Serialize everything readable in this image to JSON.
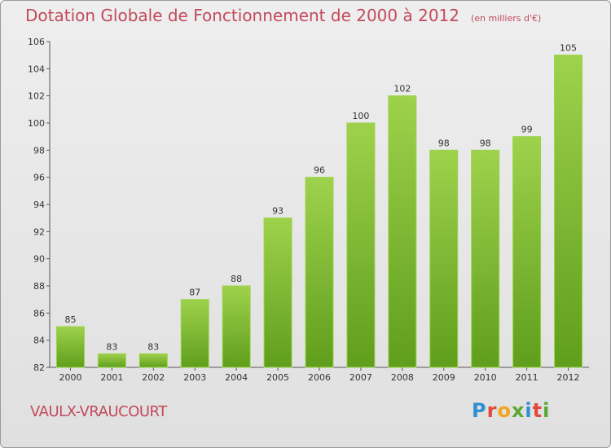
{
  "header": {
    "title": "Dotation Globale de Fonctionnement de 2000 à 2012",
    "unit_note": "(en milliers d'€)"
  },
  "commune": "VAULX-VRAUCOURT",
  "logo": {
    "text": "Proxiti",
    "letters": [
      "P",
      "r",
      "o",
      "x",
      "i",
      "t",
      "i"
    ],
    "colors": [
      "#2f8fd0",
      "#e14a3a",
      "#f2a51f",
      "#5aa832",
      "#2f8fd0",
      "#e14a3a",
      "#5aa832"
    ]
  },
  "chart_data": {
    "type": "bar",
    "title": "Dotation Globale de Fonctionnement de 2000 à 2012",
    "subtitle": "(en milliers d'€)",
    "categories": [
      "2000",
      "2001",
      "2002",
      "2003",
      "2004",
      "2005",
      "2006",
      "2007",
      "2008",
      "2009",
      "2010",
      "2011",
      "2012"
    ],
    "values": [
      85,
      83,
      83,
      87,
      88,
      93,
      96,
      100,
      102,
      98,
      98,
      99,
      105
    ],
    "ylim": [
      82,
      106
    ],
    "yticks": [
      82,
      84,
      86,
      88,
      90,
      92,
      94,
      96,
      98,
      100,
      102,
      104,
      106
    ],
    "grid": false,
    "bar_color": "#7ab82e",
    "bar_color_light": "#9ed24c",
    "axis_color": "#555555"
  }
}
